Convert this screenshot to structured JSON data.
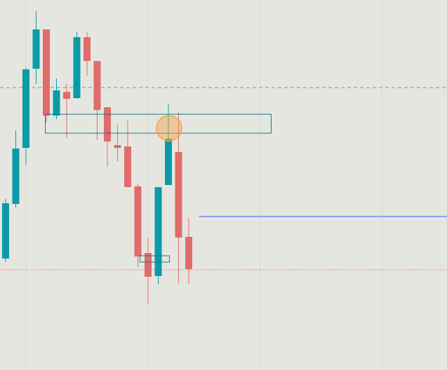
{
  "chart_data": {
    "type": "candlestick",
    "x": [
      0,
      1,
      2,
      3,
      4,
      5,
      6,
      7,
      8,
      9,
      10,
      11,
      12,
      13,
      14,
      15,
      16,
      17,
      18
    ],
    "open": [
      159,
      237,
      317,
      430,
      486,
      363,
      397,
      388,
      475,
      441,
      375,
      321,
      319,
      262,
      167,
      134,
      264,
      311,
      190
    ],
    "high": [
      244,
      342,
      431,
      512,
      486,
      416,
      408,
      483,
      482,
      441,
      375,
      350,
      356,
      266,
      188,
      261,
      379,
      369,
      217
    ],
    "low": [
      154,
      232,
      293,
      408,
      353,
      358,
      331,
      387,
      420,
      328,
      290,
      298,
      261,
      147,
      94,
      122,
      264,
      124,
      123
    ],
    "close": [
      238,
      316,
      429,
      486,
      363,
      399,
      387,
      475,
      441,
      371,
      326,
      317,
      261,
      162,
      133,
      261,
      330,
      189,
      144
    ],
    "up_color": "#0a9ba6",
    "down_color": "#e06b6b",
    "xlim": [
      -0.55,
      43.38
    ],
    "ylim": [
      0,
      528
    ],
    "xticks": [
      2,
      14,
      25,
      37
    ],
    "grid": true,
    "levels": [
      {
        "value": 403,
        "color": "#8a8a8a",
        "style": "dashed",
        "from": -0.55
      },
      {
        "value": 143,
        "color": "#e05050",
        "style": "dotted",
        "from": -0.55
      },
      {
        "value": 219,
        "color": "#2962ff",
        "style": "solid",
        "from": 19
      }
    ],
    "zones": [
      {
        "x0": 3.9,
        "x1": 26.1,
        "low": 338,
        "high": 365,
        "color": "#0a7f88"
      },
      {
        "x0": 13.2,
        "x1": 16.1,
        "low": 154,
        "high": 163,
        "color": "#0a7f88"
      }
    ],
    "marker": {
      "x": 16.07,
      "y": 345,
      "color": "#f5a340"
    }
  }
}
